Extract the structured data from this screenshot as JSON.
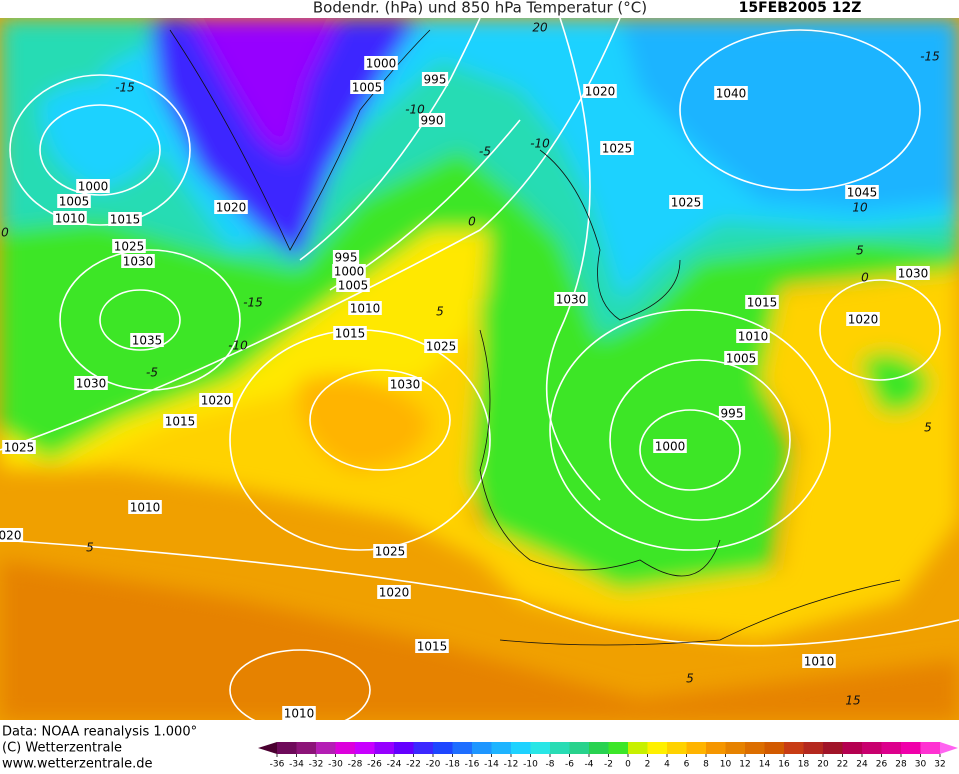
{
  "header": {
    "title": "Bodendr. (hPa) und 850 hPa Temperatur (°C)",
    "date": "15FEB2005 12Z"
  },
  "isobar_labels": [
    "1000",
    "1005",
    "995",
    "1020",
    "990",
    "1040",
    "1025",
    "1000",
    "1005",
    "1010",
    "1015",
    "1020",
    "1045",
    "1025",
    "1025",
    "1030",
    "995",
    "1000",
    "1005",
    "1030",
    "1010",
    "1030",
    "1015",
    "1020",
    "1015",
    "1035",
    "1025",
    "1010",
    "1005",
    "1030",
    "1030",
    "1020",
    "1015",
    "995",
    "1000",
    "1025",
    "1010",
    "020",
    "1025",
    "1020",
    "1015",
    "1010",
    "1010"
  ],
  "temperature_labels": [
    "-15",
    "-10",
    "-5",
    "-10",
    "0",
    "-15",
    "-10",
    "-5",
    "5",
    "-15",
    "10",
    "5",
    "0",
    "5",
    "5",
    "15",
    "5",
    "0",
    "20"
  ],
  "footer": [
    "Data: NOAA reanalysis 1.000°",
    "(C) Wetterzentrale",
    "www.wetterzentrale.de"
  ],
  "legend": {
    "ticks": [
      -36,
      -34,
      -32,
      -30,
      -28,
      -26,
      -24,
      -22,
      -20,
      -18,
      -16,
      -14,
      -12,
      -10,
      -8,
      -6,
      -4,
      -2,
      0,
      2,
      4,
      6,
      8,
      10,
      12,
      14,
      16,
      18,
      20,
      22,
      24,
      26,
      28,
      30,
      32
    ],
    "colors": [
      "#4a0030",
      "#6e0a5a",
      "#8c1478",
      "#b41eb4",
      "#dc00dc",
      "#c800ff",
      "#9600ff",
      "#6400ff",
      "#3c28ff",
      "#1e46ff",
      "#1e6eff",
      "#1e96ff",
      "#1eb4ff",
      "#1ed2ff",
      "#28e6e6",
      "#28dcb4",
      "#28d28c",
      "#28d250",
      "#3ce628",
      "#c8f000",
      "#fff000",
      "#ffd200",
      "#ffb400",
      "#f59600",
      "#e68200",
      "#dc6e00",
      "#d25a00",
      "#c83c14",
      "#b4281e",
      "#a01428",
      "#b40050",
      "#c8006e",
      "#dc008c",
      "#f000aa",
      "#ff32d2",
      "#ff64f0"
    ]
  }
}
